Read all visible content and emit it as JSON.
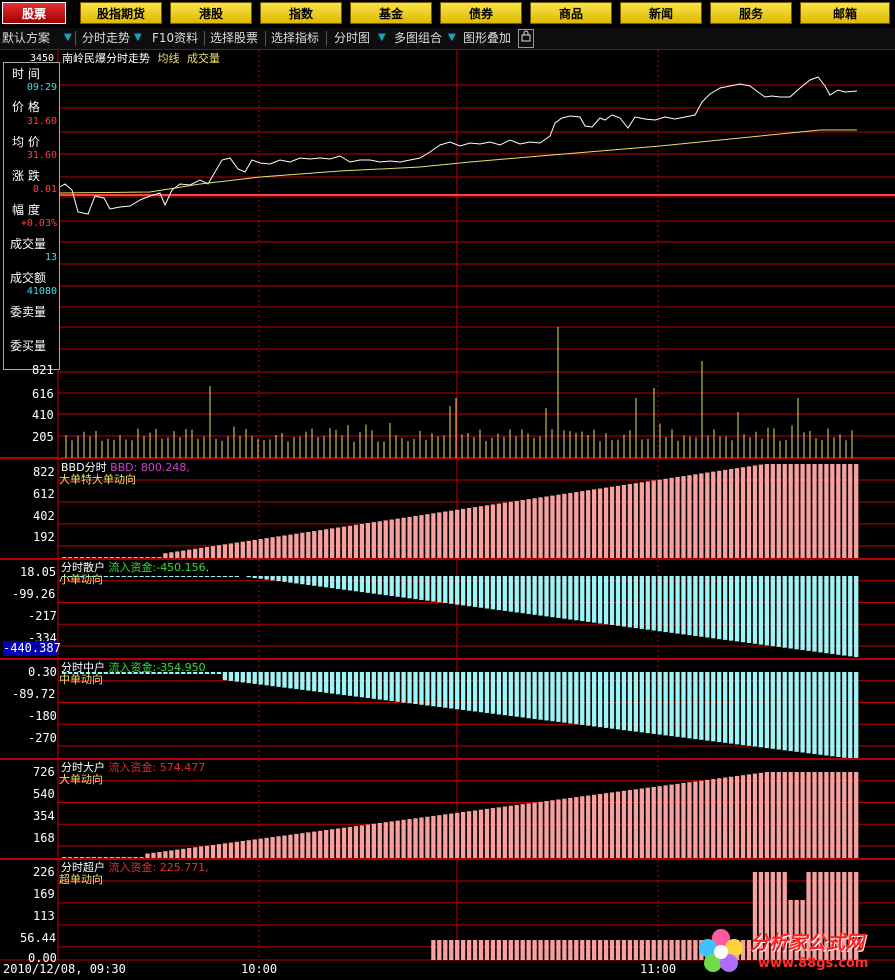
{
  "nav": [
    {
      "label": "股票",
      "active": true
    },
    {
      "label": "股指期货"
    },
    {
      "label": "港股"
    },
    {
      "label": "指数"
    },
    {
      "label": "基金"
    },
    {
      "label": "债券"
    },
    {
      "label": "商品"
    },
    {
      "label": "新闻"
    },
    {
      "label": "服务"
    },
    {
      "label": "邮箱"
    }
  ],
  "toolbar": {
    "scheme": "默认方案",
    "intraday": "分时走势",
    "f10": "F10资料",
    "select_stock": "选择股票",
    "select_indicator": "选择指标",
    "chart_type": "分时图",
    "multi": "多图组合",
    "overlay": "图形叠加",
    "lock_icon": "lock-icon"
  },
  "price_panel": {
    "title": "南岭民爆分时走势",
    "avg_label": "均线",
    "vol_label": "成交量",
    "top_tick": "3450"
  },
  "info": {
    "time_label": "时 间",
    "time": "09:29",
    "price_label": "价 格",
    "price": "31.60",
    "avg_label": "均 价",
    "avg": "31.60",
    "change_label": "涨 跌",
    "change": "0.01",
    "pct_label": "幅 度",
    "pct": "+0.03%",
    "vol_label": "成交量",
    "vol": "13",
    "amt_label": "成交额",
    "amt": "41080",
    "ask_label": "委卖量",
    "bid_label": "委买量"
  },
  "volume_axis": [
    "821",
    "616",
    "410",
    "205"
  ],
  "panels": [
    {
      "title": "BBD分时",
      "flow_label": "BBD:",
      "flow_value": "800.248,",
      "desc": "大单特大单动向",
      "ticks": [
        "822",
        "612",
        "402",
        "192"
      ],
      "color": "#f6a0a0",
      "title_color": "#ffffff",
      "flow_color": "#cc44cc"
    },
    {
      "title": "分时散户",
      "flow_label": "流入资金:",
      "flow_value": "-450.156,",
      "desc": "小单动向",
      "ticks": [
        "18.05",
        "-99.26",
        "-217",
        "-334"
      ],
      "badge": "-440.387",
      "color": "#9ff4f6",
      "title_color": "#ffffff",
      "flow_color": "#30e030"
    },
    {
      "title": "分时中户",
      "flow_label": "流入资金:",
      "flow_value": "-354.950",
      "desc": "中单动向",
      "ticks": [
        "0.30",
        "-89.72",
        "-180",
        "-270"
      ],
      "color": "#9ff4f6",
      "title_color": "#ffffff",
      "flow_color": "#30e030"
    },
    {
      "title": "分时大户",
      "flow_label": "流入资金:",
      "flow_value": "574.477",
      "desc": "大单动向",
      "ticks": [
        "726",
        "540",
        "354",
        "168"
      ],
      "color": "#f6a0a0",
      "title_color": "#ffffff",
      "flow_color": "#e03030"
    },
    {
      "title": "分时超户",
      "flow_label": "流入资金:",
      "flow_value": "225.771,",
      "desc": "超单动向",
      "ticks": [
        "226",
        "169",
        "113",
        "56.44",
        "0.00"
      ],
      "color": "#f6a0a0",
      "title_color": "#ffffff",
      "flow_color": "#e03030"
    }
  ],
  "time_axis": {
    "start": "2010/12/08, 09:30",
    "t1": "10:00",
    "t2": "11:00"
  },
  "watermark": {
    "brand": "分析家公式网",
    "url": "www.88gs.com"
  },
  "colors": {
    "grid": "#c00000",
    "price": "#ffffff",
    "avg": "#e8e070",
    "vol": "#e8e070",
    "axis_text": "#ffffff"
  }
}
